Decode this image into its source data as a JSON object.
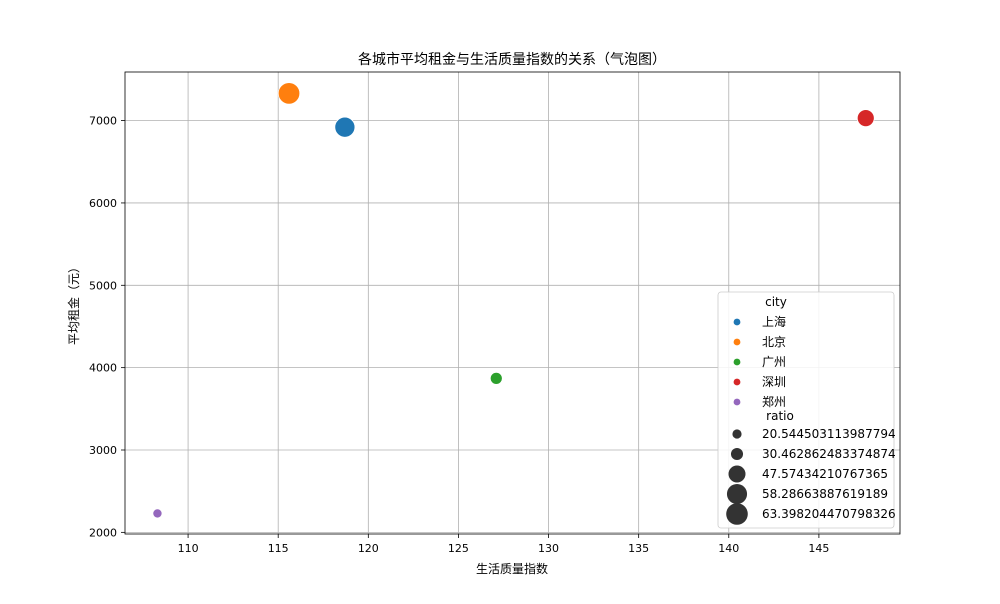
{
  "chart_data": {
    "type": "scatter",
    "title": "各城市平均租金与生活质量指数的关系（气泡图）",
    "xlabel": "生活质量指数",
    "ylabel": "平均租金（元）",
    "xlim": [
      106.5,
      149.5
    ],
    "ylim": [
      1980,
      7590
    ],
    "x_ticks": [
      110,
      115,
      120,
      125,
      130,
      135,
      140,
      145
    ],
    "y_ticks": [
      2000,
      3000,
      4000,
      5000,
      6000,
      7000
    ],
    "grid": true,
    "legend_position": "lower-right",
    "points": [
      {
        "city": "上海",
        "x": 118.7,
        "y": 6920,
        "ratio": 58.28663887619189,
        "color": "#1f77b4"
      },
      {
        "city": "北京",
        "x": 115.6,
        "y": 7330,
        "ratio": 63.398204470798326,
        "color": "#ff7f0e"
      },
      {
        "city": "广州",
        "x": 127.1,
        "y": 3870,
        "ratio": 30.462862483374874,
        "color": "#2ca02c"
      },
      {
        "city": "深圳",
        "x": 147.6,
        "y": 7030,
        "ratio": 47.57434210767365,
        "color": "#d62728"
      },
      {
        "city": "郑州",
        "x": 108.3,
        "y": 2230,
        "ratio": 20.544503113987794,
        "color": "#9467bd"
      }
    ],
    "legend": {
      "hue_title": "city",
      "hue_entries": [
        {
          "label": "上海",
          "color": "#1f77b4"
        },
        {
          "label": "北京",
          "color": "#ff7f0e"
        },
        {
          "label": "广州",
          "color": "#2ca02c"
        },
        {
          "label": "深圳",
          "color": "#d62728"
        },
        {
          "label": "郑州",
          "color": "#9467bd"
        }
      ],
      "size_title": "ratio",
      "size_entries": [
        {
          "label": "20.544503113987794",
          "ratio": 20.544503113987794
        },
        {
          "label": "30.462862483374874",
          "ratio": 30.462862483374874
        },
        {
          "label": "47.57434210767365",
          "ratio": 47.57434210767365
        },
        {
          "label": "58.28663887619189",
          "ratio": 58.28663887619189
        },
        {
          "label": "63.398204470798326",
          "ratio": 63.398204470798326
        }
      ],
      "size_marker_color": "#333333"
    }
  }
}
